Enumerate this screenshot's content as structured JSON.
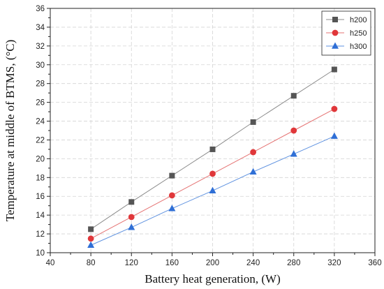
{
  "chart_data": {
    "type": "line",
    "title": "",
    "xlabel": "Battery heat generation, (W)",
    "ylabel": "Temperature at middle of BTMS, (°C)",
    "xlim": [
      40,
      360
    ],
    "ylim": [
      10,
      36
    ],
    "xticks": [
      40,
      80,
      120,
      160,
      200,
      240,
      280,
      320,
      360
    ],
    "yticks": [
      10,
      12,
      14,
      16,
      18,
      20,
      22,
      24,
      26,
      28,
      30,
      32,
      34,
      36
    ],
    "grid": true,
    "legend_position": "top-right",
    "x": [
      80,
      120,
      160,
      200,
      240,
      280,
      320
    ],
    "series": [
      {
        "name": "h200",
        "marker": "square",
        "color": "#555555",
        "line_color": "#8c8c8c",
        "values": [
          12.5,
          15.4,
          18.2,
          21.0,
          23.9,
          26.7,
          29.5
        ]
      },
      {
        "name": "h250",
        "marker": "circle",
        "color": "#e0373a",
        "line_color": "#e57373",
        "values": [
          11.5,
          13.8,
          16.1,
          18.4,
          20.7,
          23.0,
          25.3
        ]
      },
      {
        "name": "h300",
        "marker": "triangle",
        "color": "#2f6fd6",
        "line_color": "#5f92e0",
        "values": [
          10.8,
          12.7,
          14.7,
          16.6,
          18.6,
          20.5,
          22.4
        ]
      }
    ]
  }
}
